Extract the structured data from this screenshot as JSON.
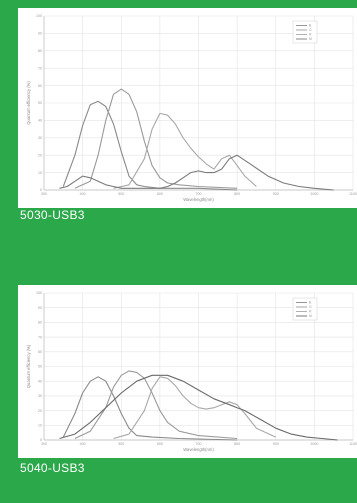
{
  "header_text": "",
  "chart_data": [
    {
      "type": "line",
      "caption": "5030-USB3",
      "xlabel": "Wavelength(nm)",
      "ylabel": "Quantum efficiency (%)",
      "xlim": [
        300,
        1100
      ],
      "ylim": [
        0,
        100
      ],
      "x_ticks": [
        "300",
        "400",
        "500",
        "600",
        "700",
        "800",
        "900",
        "1000",
        "1100"
      ],
      "y_ticks": [
        "0",
        "10",
        "20",
        "30",
        "40",
        "50",
        "60",
        "70",
        "80",
        "90",
        "100"
      ],
      "legend": [
        "B",
        "G",
        "R",
        "M"
      ],
      "legend_position": "top-right",
      "grid": true,
      "series": [
        {
          "name": "B",
          "color": "#8a8a8a",
          "x": [
            350,
            380,
            400,
            420,
            440,
            460,
            480,
            500,
            520,
            540,
            560,
            600,
            650,
            700,
            800
          ],
          "y": [
            2,
            20,
            37,
            49,
            51,
            48,
            38,
            22,
            8,
            3,
            2,
            1,
            1,
            1,
            0
          ]
        },
        {
          "name": "G",
          "color": "#9a9a9a",
          "x": [
            380,
            420,
            440,
            460,
            480,
            500,
            520,
            540,
            560,
            580,
            600,
            620,
            650,
            700,
            800
          ],
          "y": [
            1,
            5,
            20,
            40,
            55,
            58,
            55,
            45,
            28,
            14,
            7,
            4,
            3,
            2,
            1
          ]
        },
        {
          "name": "R",
          "color": "#a8a8a8",
          "x": [
            480,
            520,
            560,
            580,
            600,
            620,
            640,
            660,
            680,
            700,
            720,
            740,
            760,
            780,
            800,
            820,
            850
          ],
          "y": [
            1,
            3,
            18,
            35,
            44,
            43,
            38,
            30,
            24,
            19,
            15,
            12,
            18,
            20,
            14,
            8,
            2
          ]
        },
        {
          "name": "M",
          "color": "#7a7a7a",
          "x": [
            340,
            360,
            380,
            400,
            420,
            440,
            460,
            480,
            500,
            520,
            540,
            560,
            580,
            600,
            620,
            640,
            660,
            680,
            700,
            720,
            740,
            760,
            780,
            800,
            840,
            880,
            920,
            960,
            1000,
            1050
          ],
          "y": [
            1,
            2,
            5,
            8,
            7,
            5,
            3,
            2,
            1,
            1,
            1,
            1,
            1,
            1,
            2,
            4,
            7,
            10,
            11,
            10,
            10,
            12,
            18,
            20,
            14,
            8,
            4,
            2,
            1,
            0
          ]
        }
      ]
    },
    {
      "type": "line",
      "caption": "5040-USB3",
      "xlabel": "Wavelength(nm)",
      "ylabel": "Quantum efficiency (%)",
      "xlim": [
        300,
        1100
      ],
      "ylim": [
        0,
        100
      ],
      "x_ticks": [
        "300",
        "400",
        "500",
        "600",
        "700",
        "800",
        "900",
        "1000",
        "1100"
      ],
      "y_ticks": [
        "0",
        "10",
        "20",
        "30",
        "40",
        "50",
        "60",
        "70",
        "80",
        "90",
        "100"
      ],
      "legend": [
        "B",
        "G",
        "R",
        "M"
      ],
      "legend_position": "top-right",
      "grid": true,
      "series": [
        {
          "name": "B",
          "color": "#8a8a8a",
          "x": [
            350,
            380,
            400,
            420,
            440,
            460,
            480,
            500,
            520,
            540,
            580,
            650,
            800
          ],
          "y": [
            2,
            18,
            32,
            40,
            43,
            40,
            30,
            18,
            8,
            3,
            2,
            1,
            0
          ]
        },
        {
          "name": "G",
          "color": "#9a9a9a",
          "x": [
            380,
            420,
            460,
            480,
            500,
            520,
            540,
            560,
            580,
            600,
            620,
            650,
            700,
            800
          ],
          "y": [
            1,
            6,
            22,
            36,
            44,
            47,
            46,
            42,
            32,
            20,
            12,
            6,
            3,
            1
          ]
        },
        {
          "name": "R",
          "color": "#a8a8a8",
          "x": [
            480,
            520,
            560,
            580,
            600,
            620,
            640,
            660,
            680,
            700,
            720,
            740,
            760,
            780,
            800,
            820,
            850,
            900
          ],
          "y": [
            1,
            4,
            20,
            35,
            43,
            42,
            37,
            30,
            25,
            22,
            21,
            22,
            24,
            26,
            24,
            18,
            8,
            2
          ]
        },
        {
          "name": "M",
          "color": "#6a6a6a",
          "x": [
            340,
            380,
            420,
            460,
            500,
            540,
            580,
            620,
            660,
            700,
            740,
            780,
            800,
            820,
            860,
            900,
            940,
            980,
            1020,
            1060
          ],
          "y": [
            1,
            4,
            12,
            22,
            32,
            40,
            44,
            44,
            40,
            34,
            28,
            24,
            22,
            20,
            14,
            8,
            4,
            2,
            1,
            0
          ]
        }
      ]
    }
  ],
  "captions": {
    "top": "5030-USB3",
    "bottom": "5040-USB3"
  }
}
